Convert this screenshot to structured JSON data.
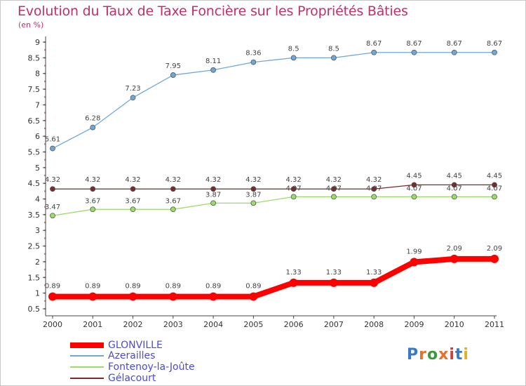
{
  "header": {
    "title": "Evolution du Taux de Taxe Foncière sur les Propriétés Bâties",
    "unit": "(en %)"
  },
  "logo": {
    "text": "Proxiti"
  },
  "colors": {
    "title": "#c0306a",
    "axis": "#444444",
    "grid": "#e07070",
    "legend_text": "#4a4ad8"
  },
  "chart_data": {
    "type": "line",
    "title": "Evolution du Taux de Taxe Foncière sur les Propriétés Bâties",
    "xlabel": "",
    "ylabel": "(en %)",
    "x": [
      "2000",
      "2001",
      "2002",
      "2003",
      "2004",
      "2005",
      "2006",
      "2007",
      "2008",
      "2009",
      "2010",
      "2011"
    ],
    "ylim": [
      0.5,
      9
    ],
    "yticks": [
      "0.5",
      "1",
      "1.5",
      "2",
      "2.5",
      "3",
      "3.5",
      "4",
      "4.5",
      "5",
      "5.5",
      "6",
      "6.5",
      "7",
      "7.5",
      "8",
      "8.5",
      "9"
    ],
    "legend_position": "bottom-left",
    "series": [
      {
        "name": "GLONVILLE",
        "color": "#ff0000",
        "values": [
          0.89,
          0.89,
          0.89,
          0.89,
          0.89,
          0.89,
          1.33,
          1.33,
          1.33,
          1.99,
          2.09,
          2.09
        ],
        "labels": [
          "0.89",
          "0.89",
          "0.89",
          "0.89",
          "0.89",
          "0.89",
          "1.33",
          "1.33",
          "1.33",
          "1.99",
          "2.09",
          "2.09"
        ]
      },
      {
        "name": "Azerailles",
        "color": "#6fa8d8",
        "values": [
          5.61,
          6.28,
          7.23,
          7.95,
          8.11,
          8.36,
          8.5,
          8.5,
          8.67,
          8.67,
          8.67,
          8.67
        ],
        "labels": [
          "5.61",
          "6.28",
          "7.23",
          "7.95",
          "8.11",
          "8.36",
          "8.5",
          "8.5",
          "8.67",
          "8.67",
          "8.67",
          "8.67"
        ]
      },
      {
        "name": "Fontenoy-la-Joûte",
        "color": "#99dd66",
        "values": [
          3.47,
          3.67,
          3.67,
          3.67,
          3.87,
          3.87,
          4.07,
          4.07,
          4.07,
          4.07,
          4.07,
          4.07
        ],
        "labels": [
          "3.47",
          "3.67",
          "3.67",
          "3.67",
          "3.87",
          "3.87",
          "4.07",
          "4.07",
          "4.07",
          "4.07",
          "4.07",
          "4.07"
        ]
      },
      {
        "name": "Gélacourt",
        "color": "#7a2a2a",
        "values": [
          4.32,
          4.32,
          4.32,
          4.32,
          4.32,
          4.32,
          4.32,
          4.32,
          4.32,
          4.45,
          4.45,
          4.45
        ],
        "labels": [
          "4.32",
          "4.32",
          "4.32",
          "4.32",
          "4.32",
          "4.32",
          "4.32",
          "4.32",
          "4.32",
          "4.45",
          "4.45",
          "4.45"
        ]
      }
    ]
  }
}
